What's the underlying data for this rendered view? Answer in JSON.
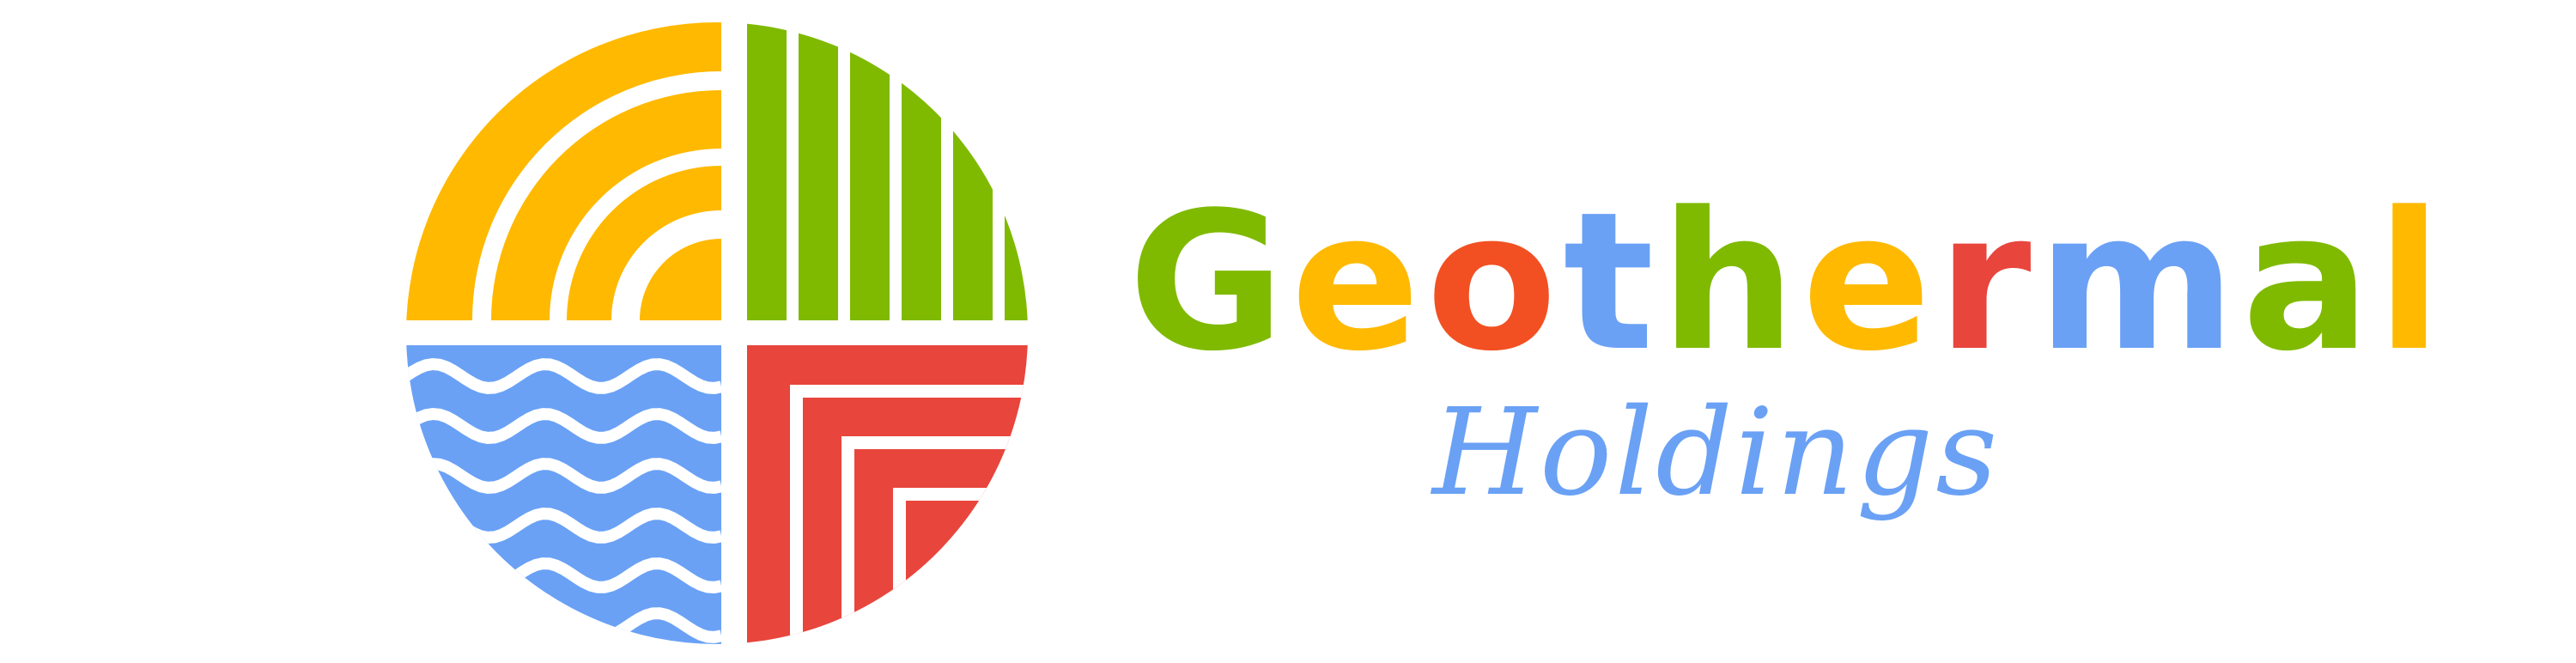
{
  "logo": {
    "name": "Geothermal",
    "subtitle": "Holdings",
    "letters": [
      {
        "char": "G",
        "color": "#7fba00"
      },
      {
        "char": "e",
        "color": "#ffb900"
      },
      {
        "char": "o",
        "color": "#f25022"
      },
      {
        "char": "t",
        "color": "#6aa1f5"
      },
      {
        "char": "h",
        "color": "#7fba00"
      },
      {
        "char": "e",
        "color": "#ffb900"
      },
      {
        "char": "r",
        "color": "#e8453c"
      },
      {
        "char": "m",
        "color": "#6aa1f5"
      },
      {
        "char": "a",
        "color": "#7fba00"
      },
      {
        "char": "l",
        "color": "#ffb900"
      }
    ],
    "subtitle_color": "#6aa1f5",
    "emblem_colors": {
      "sun": "#ffb900",
      "fields": "#7fba00",
      "water": "#6aa1f5",
      "earth": "#e8453c",
      "gap": "#ffffff"
    }
  }
}
